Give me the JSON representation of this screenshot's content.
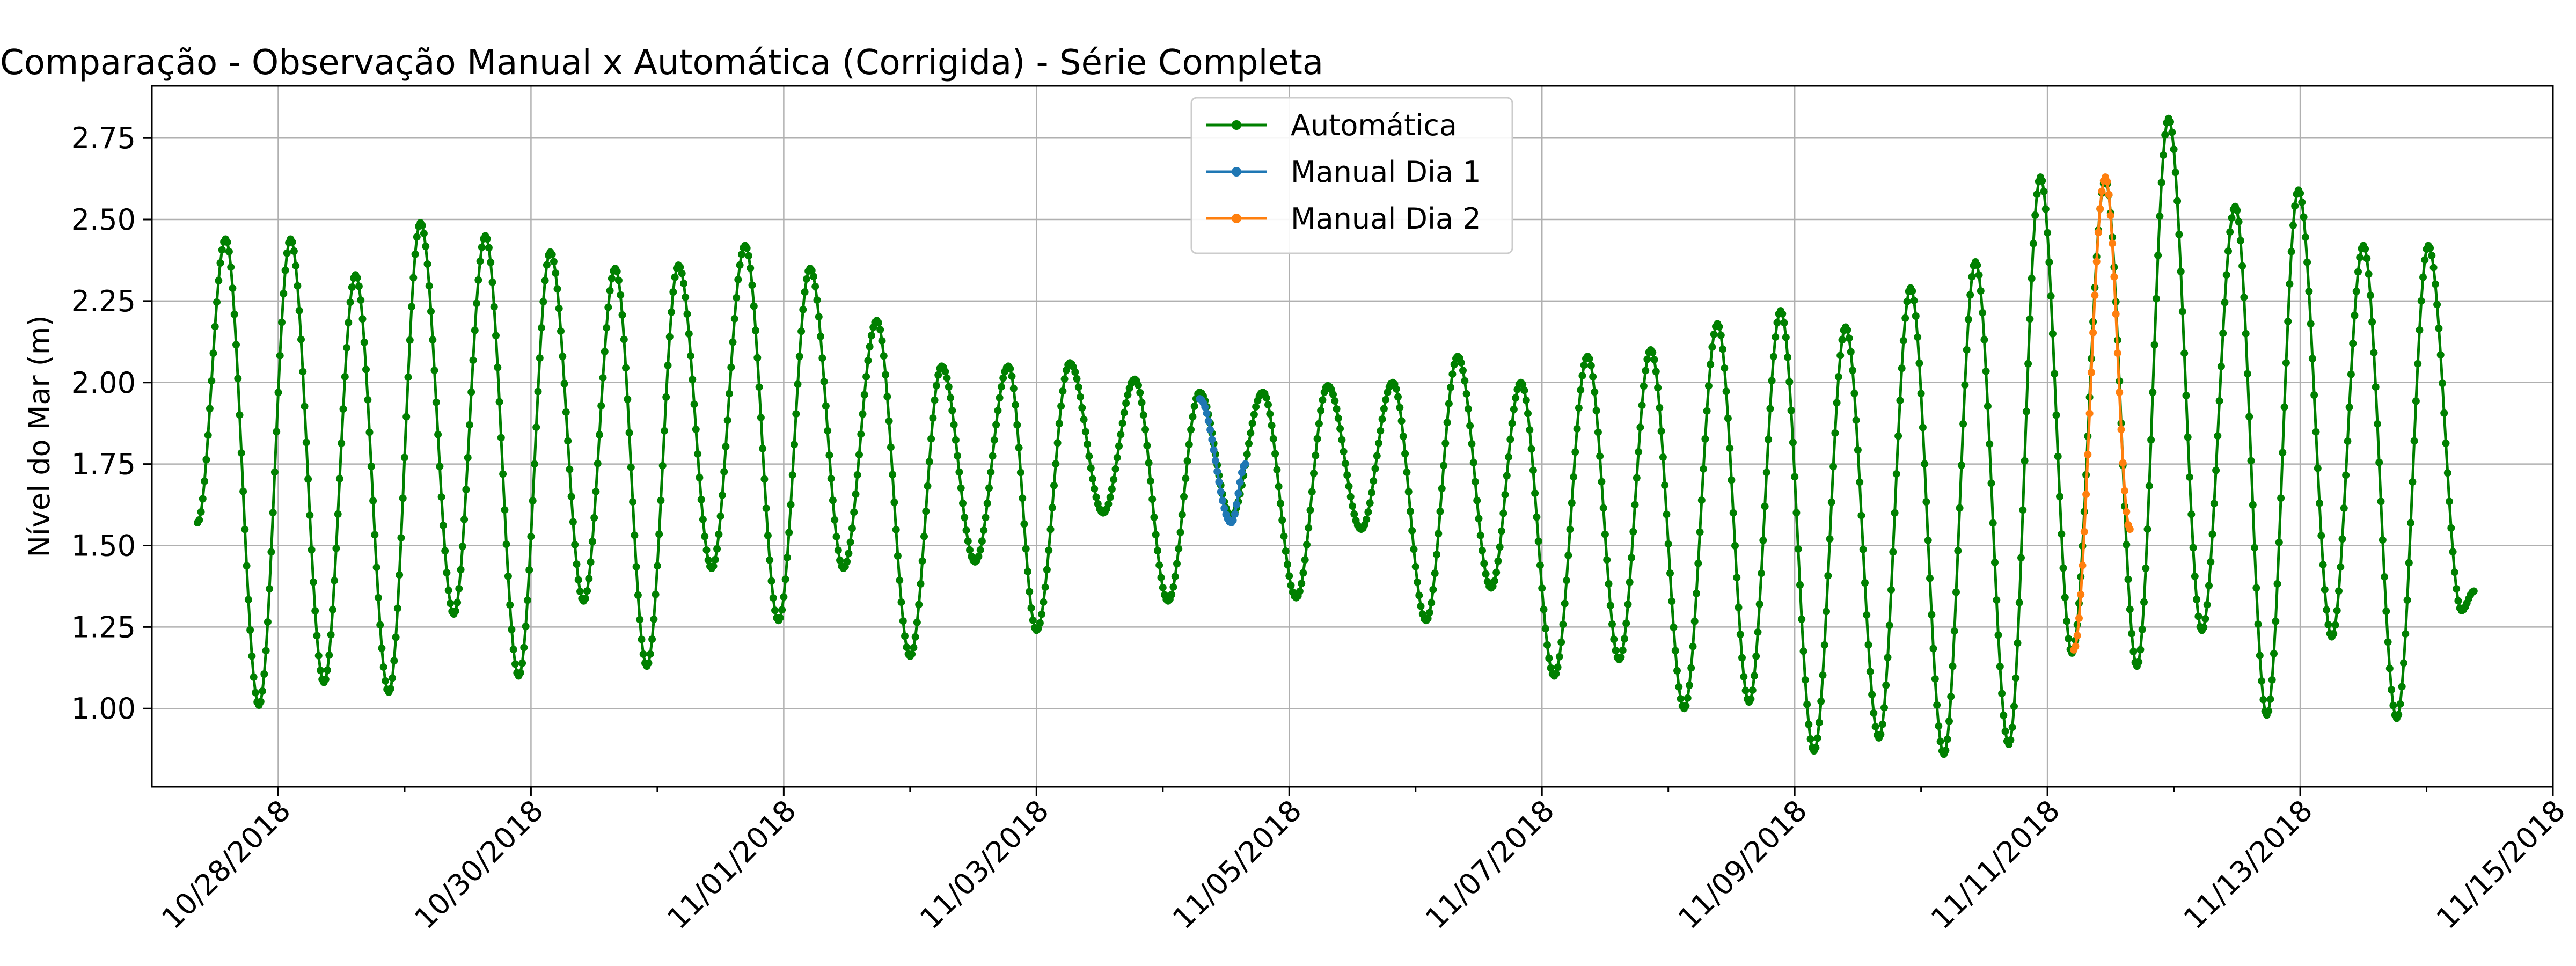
{
  "chart_data": {
    "type": "line",
    "title": "Comparação - Observação Manual x Automática (Corrigida) - Série Completa",
    "xlabel": "",
    "ylabel": "Nível do Mar (m)",
    "x_range": [
      "2018-10-27T00:00",
      "2018-11-15T00:00"
    ],
    "ylim": [
      0.76,
      2.91
    ],
    "x_ticks": [
      "10/28/2018",
      "10/30/2018",
      "11/01/2018",
      "11/03/2018",
      "11/05/2018",
      "11/07/2018",
      "11/09/2018",
      "11/11/2018",
      "11/13/2018",
      "11/15/2018"
    ],
    "x_tick_dates": [
      "2018-10-28",
      "2018-10-30",
      "2018-11-01",
      "2018-11-03",
      "2018-11-05",
      "2018-11-07",
      "2018-11-09",
      "2018-11-11",
      "2018-11-13",
      "2018-11-15"
    ],
    "y_ticks": [
      1.0,
      1.25,
      1.5,
      1.75,
      2.0,
      2.25,
      2.5,
      2.75
    ],
    "y_tick_labels": [
      "1.00",
      "1.25",
      "1.50",
      "1.75",
      "2.00",
      "2.25",
      "2.50",
      "2.75"
    ],
    "grid": true,
    "legend_position": "top-center",
    "series": [
      {
        "name": "Automática",
        "color": "#008000",
        "extremes": [
          [
            "2018-10-27T08:40",
            1.57
          ],
          [
            "2018-10-27T14:00",
            2.44
          ],
          [
            "2018-10-27T20:20",
            1.01
          ],
          [
            "2018-10-28T02:20",
            2.44
          ],
          [
            "2018-10-28T08:40",
            1.08
          ],
          [
            "2018-10-28T14:40",
            2.33
          ],
          [
            "2018-10-28T21:00",
            1.05
          ],
          [
            "2018-10-29T03:00",
            2.49
          ],
          [
            "2018-10-29T09:20",
            1.29
          ],
          [
            "2018-10-29T15:20",
            2.45
          ],
          [
            "2018-10-29T21:40",
            1.1
          ],
          [
            "2018-10-30T03:40",
            2.4
          ],
          [
            "2018-10-30T10:00",
            1.33
          ],
          [
            "2018-10-30T16:00",
            2.35
          ],
          [
            "2018-10-30T22:00",
            1.13
          ],
          [
            "2018-10-31T04:00",
            2.36
          ],
          [
            "2018-10-31T10:20",
            1.43
          ],
          [
            "2018-10-31T16:40",
            2.42
          ],
          [
            "2018-10-31T23:00",
            1.27
          ],
          [
            "2018-11-01T05:00",
            2.35
          ],
          [
            "2018-11-01T11:20",
            1.43
          ],
          [
            "2018-11-01T17:40",
            2.19
          ],
          [
            "2018-11-02T00:00",
            1.16
          ],
          [
            "2018-11-02T06:00",
            2.05
          ],
          [
            "2018-11-02T12:20",
            1.45
          ],
          [
            "2018-11-02T18:40",
            2.05
          ],
          [
            "2018-11-03T00:00",
            1.24
          ],
          [
            "2018-11-03T06:20",
            2.06
          ],
          [
            "2018-11-03T12:40",
            1.6
          ],
          [
            "2018-11-03T18:40",
            2.01
          ],
          [
            "2018-11-04T01:00",
            1.33
          ],
          [
            "2018-11-04T07:00",
            1.97
          ],
          [
            "2018-11-04T13:00",
            1.59
          ],
          [
            "2018-11-04T19:00",
            1.97
          ],
          [
            "2018-11-05T01:20",
            1.34
          ],
          [
            "2018-11-05T07:20",
            1.99
          ],
          [
            "2018-11-05T13:40",
            1.55
          ],
          [
            "2018-11-05T19:40",
            2.0
          ],
          [
            "2018-11-06T02:00",
            1.27
          ],
          [
            "2018-11-06T08:00",
            2.08
          ],
          [
            "2018-11-06T14:20",
            1.37
          ],
          [
            "2018-11-06T20:00",
            2.0
          ],
          [
            "2018-11-07T02:20",
            1.1
          ],
          [
            "2018-11-07T08:40",
            2.08
          ],
          [
            "2018-11-07T14:40",
            1.15
          ],
          [
            "2018-11-07T20:40",
            2.1
          ],
          [
            "2018-11-08T03:00",
            1.0
          ],
          [
            "2018-11-08T09:20",
            2.18
          ],
          [
            "2018-11-08T15:20",
            1.02
          ],
          [
            "2018-11-08T21:20",
            2.22
          ],
          [
            "2018-11-09T03:40",
            0.87
          ],
          [
            "2018-11-09T09:40",
            2.17
          ],
          [
            "2018-11-09T16:00",
            0.91
          ],
          [
            "2018-11-09T22:00",
            2.29
          ],
          [
            "2018-11-10T04:20",
            0.86
          ],
          [
            "2018-11-10T10:20",
            2.37
          ],
          [
            "2018-11-10T16:40",
            0.89
          ],
          [
            "2018-11-10T22:40",
            2.63
          ],
          [
            "2018-11-11T04:40",
            1.17
          ],
          [
            "2018-11-11T11:00",
            2.62
          ],
          [
            "2018-11-11T17:00",
            1.13
          ],
          [
            "2018-11-11T23:00",
            2.81
          ],
          [
            "2018-11-12T05:20",
            1.24
          ],
          [
            "2018-11-12T11:40",
            2.54
          ],
          [
            "2018-11-12T17:40",
            0.98
          ],
          [
            "2018-11-12T23:40",
            2.59
          ],
          [
            "2018-11-13T06:00",
            1.22
          ],
          [
            "2018-11-13T12:00",
            2.42
          ],
          [
            "2018-11-13T18:20",
            0.97
          ],
          [
            "2018-11-14T00:20",
            2.42
          ],
          [
            "2018-11-14T06:40",
            1.3
          ],
          [
            "2018-11-14T09:00",
            1.36
          ]
        ]
      },
      {
        "name": "Manual Dia 1",
        "color": "#1f77b4",
        "extremes": [
          [
            "2018-11-04T07:00",
            1.95
          ],
          [
            "2018-11-04T13:00",
            1.57
          ],
          [
            "2018-11-04T15:40",
            1.75
          ]
        ]
      },
      {
        "name": "Manual Dia 2",
        "color": "#ff7f0e",
        "extremes": [
          [
            "2018-11-11T05:00",
            1.18
          ],
          [
            "2018-11-11T11:00",
            2.63
          ],
          [
            "2018-11-11T15:40",
            1.55
          ]
        ]
      }
    ]
  }
}
